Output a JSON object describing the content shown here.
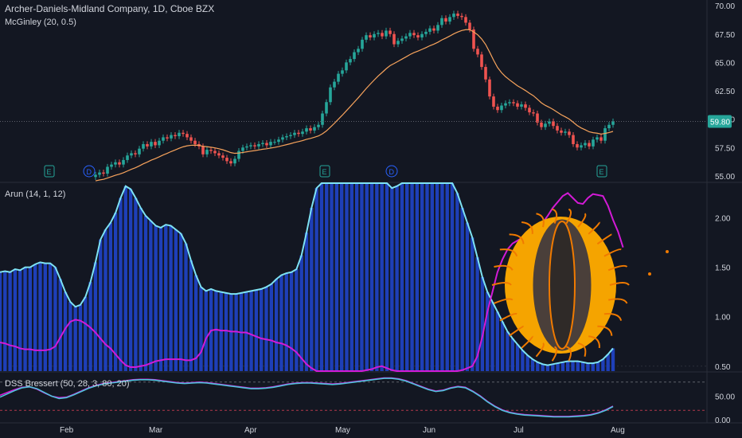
{
  "chart_data": [
    {
      "type": "candlestick",
      "title": "Archer-Daniels-Midland Company, 1D, Cboe BZX",
      "indicators": {
        "mcginley": "McGinley (20, 0.5)",
        "arun": "Arun (14, 1, 12)",
        "dss": "DSS Bressert (50, 28, 3, 80, 20)"
      },
      "x_tick_labels": [
        "Feb",
        "Mar",
        "Apr",
        "May",
        "Jun",
        "Jul",
        "Aug"
      ],
      "y_tick_labels": [
        "70.00",
        "67.50",
        "65.00",
        "62.50",
        "60.00",
        "57.50",
        "55.00"
      ],
      "last_price": "59.80",
      "events": [
        "E",
        "D",
        "E",
        "D",
        "E"
      ],
      "ylim": [
        54.5,
        70.5
      ],
      "close": [
        55.1,
        55.3,
        55.2,
        55.8,
        56.0,
        56.2,
        56.0,
        56.4,
        56.8,
        57.0,
        56.9,
        57.4,
        57.8,
        57.6,
        58.0,
        57.7,
        58.1,
        58.4,
        58.3,
        58.6,
        58.5,
        58.8,
        58.7,
        58.4,
        58.1,
        57.8,
        57.6,
        56.9,
        57.3,
        57.2,
        57.0,
        56.8,
        56.6,
        56.3,
        56.1,
        56.5,
        57.2,
        57.5,
        57.6,
        57.7,
        57.6,
        57.8,
        57.9,
        57.7,
        58.0,
        58.0,
        58.2,
        58.4,
        58.5,
        58.6,
        58.8,
        58.7,
        58.9,
        59.2,
        59.0,
        59.3,
        59.5,
        60.5,
        61.5,
        62.8,
        63.3,
        64.0,
        64.3,
        65.0,
        65.3,
        65.9,
        66.2,
        67.0,
        67.4,
        67.2,
        67.5,
        67.6,
        67.3,
        67.8,
        67.5,
        66.6,
        66.9,
        67.1,
        67.3,
        67.6,
        67.4,
        67.2,
        67.5,
        67.7,
        68.0,
        67.8,
        68.3,
        68.9,
        68.6,
        69.0,
        69.3,
        69.1,
        69.0,
        68.5,
        67.9,
        66.2,
        65.7,
        64.6,
        63.5,
        62.0,
        61.1,
        60.8,
        61.2,
        61.4,
        61.5,
        61.4,
        61.1,
        61.3,
        61.0,
        60.6,
        60.5,
        59.7,
        59.3,
        59.6,
        59.8,
        59.4,
        59.0,
        58.8,
        58.9,
        58.6,
        57.8,
        57.5,
        57.7,
        57.9,
        57.6,
        58.2,
        58.4,
        58.1,
        59.2,
        59.5,
        59.8
      ]
    },
    {
      "type": "line",
      "title": "Arun (14, 1, 12)",
      "y_tick_labels": [
        "2.00",
        "1.50",
        "1.00",
        "0.50"
      ],
      "ylim": [
        0.45,
        2.35
      ],
      "series": [
        {
          "values": [
            1.45,
            1.46,
            1.45,
            1.48,
            1.47,
            1.5,
            1.5,
            1.53,
            1.55,
            1.54,
            1.54,
            1.5,
            1.38,
            1.25,
            1.15,
            1.1,
            1.12,
            1.2,
            1.35,
            1.55,
            1.78,
            1.88,
            1.95,
            2.05,
            2.2,
            2.32,
            2.29,
            2.2,
            2.1,
            2.02,
            1.97,
            1.92,
            1.9,
            1.93,
            1.92,
            1.88,
            1.84,
            1.74,
            1.57,
            1.42,
            1.3,
            1.26,
            1.28,
            1.26,
            1.25,
            1.24,
            1.23,
            1.23,
            1.24,
            1.25,
            1.26,
            1.27,
            1.28,
            1.3,
            1.33,
            1.38,
            1.42,
            1.44,
            1.45,
            1.48,
            1.62,
            1.85,
            2.1,
            2.3,
            2.4,
            2.45,
            2.47,
            2.44,
            2.42,
            2.42,
            2.4,
            2.45,
            2.46,
            2.45,
            2.42,
            2.4,
            2.38,
            2.35,
            2.3,
            2.32,
            2.35,
            2.38,
            2.4,
            2.42,
            2.4,
            2.43,
            2.45,
            2.46,
            2.45,
            2.4,
            2.35,
            2.25,
            2.1,
            1.95,
            1.8,
            1.6,
            1.4,
            1.25,
            1.15,
            1.05,
            0.95,
            0.85,
            0.78,
            0.72,
            0.66,
            0.61,
            0.57,
            0.54,
            0.52,
            0.51,
            0.52,
            0.53,
            0.54,
            0.55,
            0.55,
            0.55,
            0.54,
            0.53,
            0.53,
            0.54,
            0.57,
            0.62,
            0.68
          ]
        },
        {
          "values": [
            0.74,
            0.73,
            0.71,
            0.7,
            0.68,
            0.67,
            0.67,
            0.66,
            0.66,
            0.66,
            0.67,
            0.7,
            0.79,
            0.88,
            0.95,
            0.97,
            0.96,
            0.93,
            0.89,
            0.84,
            0.78,
            0.72,
            0.68,
            0.62,
            0.56,
            0.51,
            0.49,
            0.49,
            0.5,
            0.51,
            0.53,
            0.55,
            0.56,
            0.57,
            0.57,
            0.57,
            0.57,
            0.56,
            0.56,
            0.58,
            0.64,
            0.78,
            0.86,
            0.87,
            0.86,
            0.86,
            0.85,
            0.85,
            0.84,
            0.84,
            0.82,
            0.8,
            0.78,
            0.77,
            0.76,
            0.74,
            0.73,
            0.71,
            0.68,
            0.64,
            0.58,
            0.52,
            0.48,
            0.45,
            0.44,
            0.43,
            0.42,
            0.42,
            0.41,
            0.41,
            0.41,
            0.42,
            0.44,
            0.46,
            0.47,
            0.49,
            0.5,
            0.48,
            0.46,
            0.44,
            0.43,
            0.42,
            0.41,
            0.41,
            0.41,
            0.4,
            0.4,
            0.41,
            0.42,
            0.43,
            0.44,
            0.45,
            0.46,
            0.48,
            0.5,
            0.6,
            0.8,
            1.05,
            1.25,
            1.45,
            1.58,
            1.68,
            1.74,
            1.77,
            1.8,
            1.83,
            1.86,
            1.9,
            1.95,
            2.02,
            2.1,
            2.16,
            2.22,
            2.25,
            2.2,
            2.15,
            2.14,
            2.2,
            2.24,
            2.23,
            2.22,
            2.12,
            1.98,
            1.86,
            1.7
          ]
        }
      ]
    },
    {
      "type": "line",
      "title": "DSS Bressert (50, 28, 3, 80, 20)",
      "y_tick_labels": [
        "50.00",
        "0.00"
      ],
      "ylim": [
        -5,
        100
      ],
      "levels": [
        80,
        20
      ],
      "series": [
        {
          "values": [
            48,
            55,
            62,
            68,
            70,
            66,
            58,
            50,
            45,
            47,
            53,
            60,
            67,
            72,
            76,
            78,
            80,
            82,
            84,
            85,
            85,
            84,
            82,
            80,
            78,
            77,
            78,
            79,
            78,
            76,
            74,
            72,
            70,
            68,
            66,
            66,
            67,
            69,
            72,
            75,
            77,
            78,
            78,
            77,
            76,
            75,
            76,
            78,
            80,
            82,
            84,
            86,
            88,
            88,
            86,
            82,
            76,
            70,
            64,
            60,
            62,
            67,
            70,
            68,
            60,
            50,
            38,
            28,
            20,
            15,
            12,
            10,
            9,
            8,
            7,
            6,
            6,
            6,
            7,
            8,
            10,
            14,
            20,
            28
          ]
        },
        {
          "values": [
            52,
            58,
            64,
            69,
            70,
            65,
            57,
            50,
            47,
            48,
            54,
            61,
            68,
            73,
            77,
            79,
            81,
            83,
            85,
            86,
            86,
            85,
            83,
            81,
            79,
            78,
            79,
            80,
            79,
            77,
            75,
            73,
            71,
            69,
            67,
            67,
            68,
            70,
            73,
            76,
            78,
            79,
            79,
            78,
            77,
            76,
            77,
            79,
            81,
            83,
            85,
            87,
            89,
            89,
            87,
            83,
            77,
            71,
            65,
            61,
            63,
            68,
            71,
            69,
            61,
            51,
            39,
            29,
            21,
            16,
            13,
            11,
            10,
            9,
            8,
            7,
            7,
            7,
            8,
            9,
            11,
            15,
            21,
            29
          ]
        }
      ]
    }
  ]
}
